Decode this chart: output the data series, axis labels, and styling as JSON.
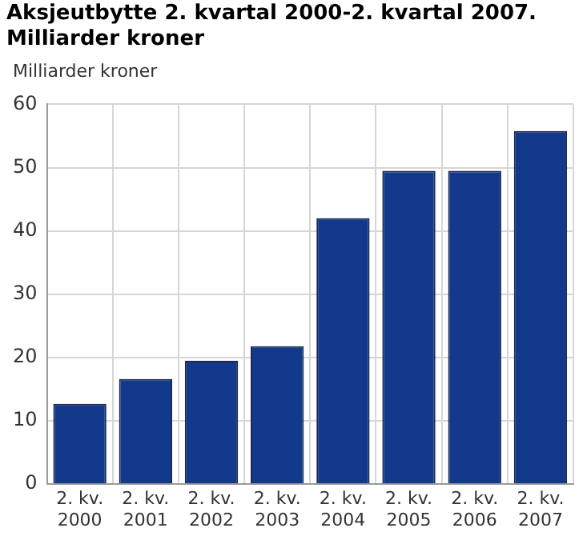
{
  "chart_data": {
    "type": "bar",
    "title": "Aksjeutbytte 2. kvartal 2000-2. kvartal 2007. Milliarder kroner",
    "ylabel": "Milliarder kroner",
    "categories": [
      "2. kv. 2000",
      "2. kv. 2001",
      "2. kv. 2002",
      "2. kv. 2003",
      "2. kv. 2004",
      "2. kv. 2005",
      "2. kv. 2006",
      "2. kv. 2007"
    ],
    "values": [
      12.7,
      16.6,
      19.5,
      21.8,
      42,
      49.5,
      49.5,
      55.8
    ],
    "color": "#12398c",
    "ylim": [
      0,
      60
    ],
    "yticks": [
      0,
      10,
      20,
      30,
      40,
      50,
      60
    ],
    "grid": true
  }
}
